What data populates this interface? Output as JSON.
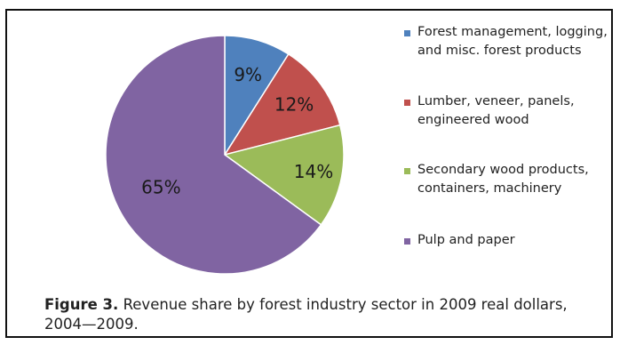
{
  "chart_data": {
    "type": "pie",
    "categories": [
      "Forest management, logging, and misc. forest products",
      "Lumber, veneer, panels, engineered wood",
      "Secondary wood products, containers, machinery",
      "Pulp and paper"
    ],
    "values": [
      9,
      12,
      14,
      65
    ],
    "data_labels": [
      "9%",
      "12%",
      "14%",
      "65%"
    ],
    "colors": [
      "#4f81bd",
      "#c0504d",
      "#9bbb59",
      "#8064a2"
    ],
    "legend_position": "right",
    "title": ""
  },
  "caption": {
    "label": "Figure 3.",
    "text": "Revenue share by forest industry sector in 2009 real dollars, 2004—2009."
  }
}
